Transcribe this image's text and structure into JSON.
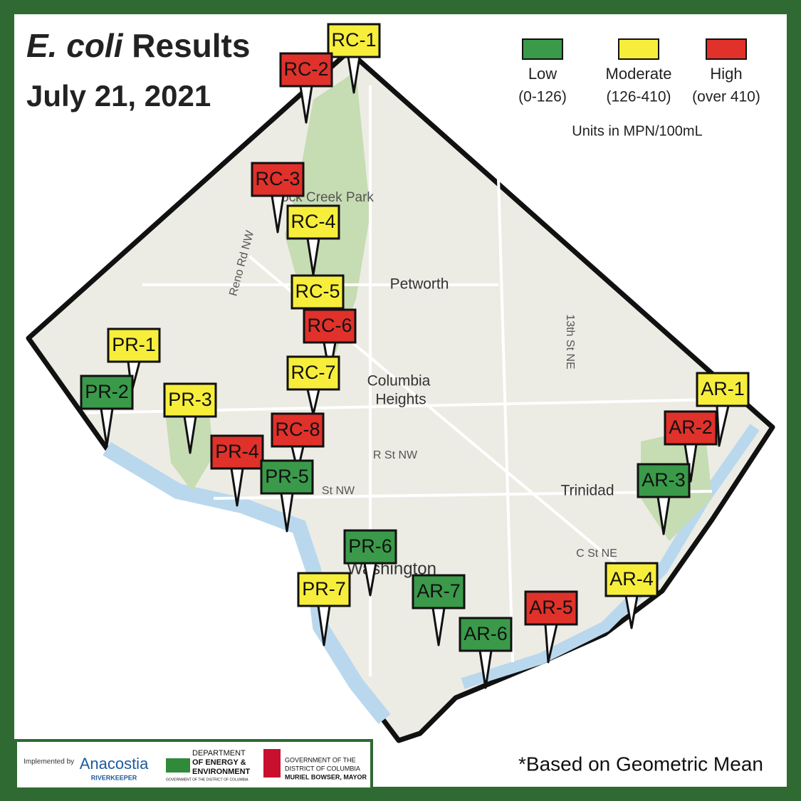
{
  "header": {
    "title_italic": "E. coli",
    "title_rest": "Results",
    "date": "July 21, 2021"
  },
  "legend": {
    "items": [
      {
        "label": "Low",
        "range": "(0-126)",
        "color": "#3a9a4a"
      },
      {
        "label": "Moderate",
        "range": "(126-410)",
        "color": "#f7ee3c"
      },
      {
        "label": "High",
        "range": "(over 410)",
        "color": "#e0312b"
      }
    ],
    "units": "Units in MPN/100mL"
  },
  "markers": [
    {
      "label": "RC-1",
      "color": "#f7ee3c"
    },
    {
      "label": "RC-2",
      "color": "#e0312b"
    },
    {
      "label": "RC-3",
      "color": "#e0312b"
    },
    {
      "label": "RC-4",
      "color": "#f7ee3c"
    },
    {
      "label": "RC-5",
      "color": "#f7ee3c"
    },
    {
      "label": "RC-6",
      "color": "#e0312b"
    },
    {
      "label": "RC-7",
      "color": "#f7ee3c"
    },
    {
      "label": "RC-8",
      "color": "#e0312b"
    },
    {
      "label": "PR-1",
      "color": "#f7ee3c"
    },
    {
      "label": "PR-2",
      "color": "#3a9a4a"
    },
    {
      "label": "PR-3",
      "color": "#f7ee3c"
    },
    {
      "label": "PR-4",
      "color": "#e0312b"
    },
    {
      "label": "PR-5",
      "color": "#3a9a4a"
    },
    {
      "label": "PR-6",
      "color": "#3a9a4a"
    },
    {
      "label": "PR-7",
      "color": "#f7ee3c"
    },
    {
      "label": "AR-1",
      "color": "#f7ee3c"
    },
    {
      "label": "AR-2",
      "color": "#e0312b"
    },
    {
      "label": "AR-3",
      "color": "#3a9a4a"
    },
    {
      "label": "AR-4",
      "color": "#f7ee3c"
    },
    {
      "label": "AR-5",
      "color": "#e0312b"
    },
    {
      "label": "AR-6",
      "color": "#3a9a4a"
    },
    {
      "label": "AR-7",
      "color": "#3a9a4a"
    }
  ],
  "map_labels": {
    "park": "ock Creek Park",
    "petworth": "Petworth",
    "columbia": "Columbia",
    "heights": "Heights",
    "trinidad": "Trinidad",
    "washington": "Washington",
    "r_st": "R St NW",
    "st_nw": "St NW",
    "c_st": "C St NE",
    "thirteenth": "13th St NE",
    "reno": "Reno Rd NW"
  },
  "footer": {
    "note": "*Based on Geometric Mean",
    "implemented": "Implemented by",
    "anacostia": "Anacostia",
    "riverkeeper": "RIVERKEEPER",
    "doee_1": "DEPARTMENT",
    "doee_2": "OF ENERGY &",
    "doee_3": "ENVIRONMENT",
    "doee_4": "GOVERNMENT OF THE DISTRICT OF COLUMBIA",
    "dc_1": "GOVERNMENT OF THE",
    "dc_2": "DISTRICT OF COLUMBIA",
    "dc_3": "MURIEL BOWSER, MAYOR"
  }
}
